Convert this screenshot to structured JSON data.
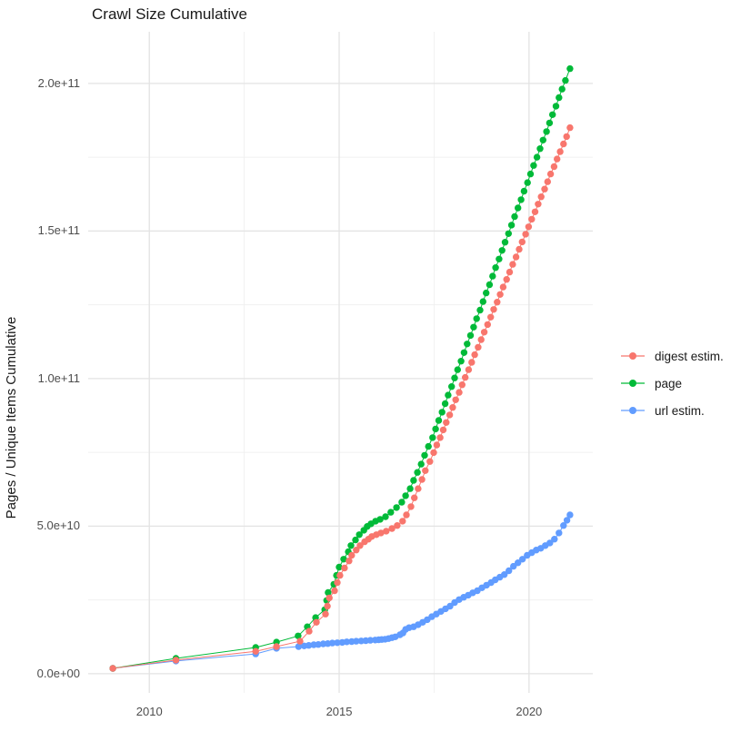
{
  "title": "Crawl Size Cumulative",
  "y_axis_title": "Pages / Unique Items Cumulative",
  "chart_data": {
    "type": "line",
    "title": "Crawl Size Cumulative",
    "xlabel": "",
    "ylabel": "Pages / Unique Items Cumulative",
    "legend_position": "right",
    "grid": "on",
    "values_unit": "1e9 (points stored in billions of pages/items)",
    "xlim": [
      2008.39,
      2021.68
    ],
    "ylim_billions": [
      -6.5,
      217.5
    ],
    "x_ticks": [
      {
        "label": "2010",
        "year": 2010
      },
      {
        "label": "2015",
        "year": 2015
      },
      {
        "label": "2020",
        "year": 2020
      }
    ],
    "x_minor_ticks": [
      2012.5,
      2017.5
    ],
    "y_ticks": [
      {
        "label": "0.0e+00",
        "value": 0
      },
      {
        "label": "5.0e+10",
        "value": 50
      },
      {
        "label": "1.0e+11",
        "value": 100
      },
      {
        "label": "1.5e+11",
        "value": 150
      },
      {
        "label": "2.0e+11",
        "value": 200
      }
    ],
    "y_minor_ticks": [
      25,
      75,
      125,
      175
    ],
    "series": [
      {
        "name": "digest estim.",
        "color": "#F8766D",
        "points": [
          [
            2009.04,
            1.8
          ],
          [
            2010.7,
            4.6
          ],
          [
            2012.8,
            7.6
          ],
          [
            2013.35,
            9.2
          ],
          [
            2013.97,
            11.0
          ],
          [
            2014.21,
            14.4
          ],
          [
            2014.4,
            17.4
          ],
          [
            2014.64,
            20.2
          ],
          [
            2014.69,
            22.9
          ],
          [
            2014.74,
            25.7
          ],
          [
            2014.88,
            28.1
          ],
          [
            2014.95,
            30.9
          ],
          [
            2015.02,
            33.3
          ],
          [
            2015.14,
            35.8
          ],
          [
            2015.26,
            38.2
          ],
          [
            2015.33,
            40.1
          ],
          [
            2015.45,
            41.9
          ],
          [
            2015.55,
            43.4
          ],
          [
            2015.67,
            44.7
          ],
          [
            2015.77,
            45.6
          ],
          [
            2015.86,
            46.5
          ],
          [
            2015.98,
            47.1
          ],
          [
            2016.1,
            47.7
          ],
          [
            2016.24,
            48.3
          ],
          [
            2016.39,
            49.2
          ],
          [
            2016.53,
            50.2
          ],
          [
            2016.67,
            51.7
          ],
          [
            2016.77,
            53.8
          ],
          [
            2016.89,
            56.6
          ],
          [
            2016.98,
            59.6
          ],
          [
            2017.08,
            62.7
          ],
          [
            2017.18,
            65.8
          ],
          [
            2017.27,
            68.8
          ],
          [
            2017.39,
            71.9
          ],
          [
            2017.49,
            74.9
          ],
          [
            2017.57,
            77.5
          ],
          [
            2017.66,
            80.0
          ],
          [
            2017.74,
            82.6
          ],
          [
            2017.82,
            85.1
          ],
          [
            2017.91,
            87.7
          ],
          [
            2017.99,
            90.2
          ],
          [
            2018.07,
            92.8
          ],
          [
            2018.16,
            95.3
          ],
          [
            2018.24,
            97.9
          ],
          [
            2018.32,
            100.4
          ],
          [
            2018.41,
            103.0
          ],
          [
            2018.49,
            105.5
          ],
          [
            2018.57,
            108.1
          ],
          [
            2018.66,
            110.6
          ],
          [
            2018.74,
            113.2
          ],
          [
            2018.82,
            115.7
          ],
          [
            2018.91,
            118.3
          ],
          [
            2018.99,
            120.8
          ],
          [
            2019.07,
            123.4
          ],
          [
            2019.16,
            125.9
          ],
          [
            2019.24,
            128.5
          ],
          [
            2019.32,
            131.0
          ],
          [
            2019.41,
            133.6
          ],
          [
            2019.49,
            136.1
          ],
          [
            2019.57,
            138.7
          ],
          [
            2019.66,
            141.2
          ],
          [
            2019.74,
            143.8
          ],
          [
            2019.82,
            146.3
          ],
          [
            2019.91,
            148.9
          ],
          [
            2019.99,
            151.4
          ],
          [
            2020.07,
            154.0
          ],
          [
            2020.16,
            156.5
          ],
          [
            2020.24,
            159.1
          ],
          [
            2020.32,
            161.6
          ],
          [
            2020.41,
            164.2
          ],
          [
            2020.49,
            166.7
          ],
          [
            2020.57,
            169.3
          ],
          [
            2020.66,
            171.8
          ],
          [
            2020.74,
            174.4
          ],
          [
            2020.82,
            176.9
          ],
          [
            2020.91,
            179.5
          ],
          [
            2020.99,
            182.0
          ],
          [
            2021.08,
            185.0
          ]
        ]
      },
      {
        "name": "page",
        "color": "#00BA38",
        "points": [
          [
            2009.04,
            1.8
          ],
          [
            2010.7,
            5.2
          ],
          [
            2012.8,
            8.9
          ],
          [
            2013.35,
            10.7
          ],
          [
            2013.92,
            12.8
          ],
          [
            2014.16,
            15.9
          ],
          [
            2014.38,
            19.0
          ],
          [
            2014.62,
            21.7
          ],
          [
            2014.67,
            24.8
          ],
          [
            2014.71,
            27.5
          ],
          [
            2014.86,
            30.3
          ],
          [
            2014.93,
            33.3
          ],
          [
            2015.0,
            36.1
          ],
          [
            2015.12,
            38.8
          ],
          [
            2015.24,
            41.3
          ],
          [
            2015.31,
            43.4
          ],
          [
            2015.43,
            45.3
          ],
          [
            2015.53,
            47.1
          ],
          [
            2015.65,
            48.6
          ],
          [
            2015.74,
            49.9
          ],
          [
            2015.84,
            50.8
          ],
          [
            2015.96,
            51.7
          ],
          [
            2016.08,
            52.3
          ],
          [
            2016.22,
            53.2
          ],
          [
            2016.36,
            54.7
          ],
          [
            2016.51,
            56.3
          ],
          [
            2016.65,
            58.1
          ],
          [
            2016.75,
            60.3
          ],
          [
            2016.87,
            62.7
          ],
          [
            2016.96,
            65.5
          ],
          [
            2017.06,
            68.2
          ],
          [
            2017.16,
            71.0
          ],
          [
            2017.25,
            74.0
          ],
          [
            2017.35,
            77.0
          ],
          [
            2017.46,
            80.0
          ],
          [
            2017.54,
            82.9
          ],
          [
            2017.62,
            85.8
          ],
          [
            2017.71,
            88.6
          ],
          [
            2017.79,
            91.5
          ],
          [
            2017.87,
            94.4
          ],
          [
            2017.96,
            97.3
          ],
          [
            2018.04,
            100.2
          ],
          [
            2018.12,
            103.0
          ],
          [
            2018.21,
            105.9
          ],
          [
            2018.29,
            108.8
          ],
          [
            2018.37,
            111.7
          ],
          [
            2018.46,
            114.6
          ],
          [
            2018.54,
            117.4
          ],
          [
            2018.62,
            120.3
          ],
          [
            2018.71,
            123.2
          ],
          [
            2018.79,
            126.1
          ],
          [
            2018.87,
            129.0
          ],
          [
            2018.96,
            131.8
          ],
          [
            2019.04,
            134.7
          ],
          [
            2019.12,
            137.6
          ],
          [
            2019.21,
            140.5
          ],
          [
            2019.29,
            143.4
          ],
          [
            2019.37,
            146.2
          ],
          [
            2019.46,
            149.1
          ],
          [
            2019.54,
            152.0
          ],
          [
            2019.62,
            154.9
          ],
          [
            2019.71,
            157.8
          ],
          [
            2019.79,
            160.6
          ],
          [
            2019.87,
            163.5
          ],
          [
            2019.96,
            166.4
          ],
          [
            2020.04,
            169.3
          ],
          [
            2020.12,
            172.2
          ],
          [
            2020.21,
            175.0
          ],
          [
            2020.29,
            177.9
          ],
          [
            2020.37,
            180.8
          ],
          [
            2020.46,
            183.7
          ],
          [
            2020.54,
            186.6
          ],
          [
            2020.62,
            189.4
          ],
          [
            2020.71,
            192.3
          ],
          [
            2020.79,
            195.2
          ],
          [
            2020.87,
            198.1
          ],
          [
            2020.96,
            201.0
          ],
          [
            2021.08,
            205.0
          ]
        ]
      },
      {
        "name": "url estim.",
        "color": "#619CFF",
        "points": [
          [
            2009.04,
            1.8
          ],
          [
            2010.7,
            4.3
          ],
          [
            2012.8,
            6.7
          ],
          [
            2013.35,
            8.6
          ],
          [
            2013.93,
            9.2
          ],
          [
            2014.08,
            9.4
          ],
          [
            2014.2,
            9.6
          ],
          [
            2014.33,
            9.8
          ],
          [
            2014.45,
            9.9
          ],
          [
            2014.58,
            10.1
          ],
          [
            2014.7,
            10.2
          ],
          [
            2014.82,
            10.4
          ],
          [
            2014.95,
            10.5
          ],
          [
            2015.08,
            10.6
          ],
          [
            2015.2,
            10.8
          ],
          [
            2015.33,
            10.9
          ],
          [
            2015.45,
            11.0
          ],
          [
            2015.58,
            11.1
          ],
          [
            2015.7,
            11.2
          ],
          [
            2015.82,
            11.3
          ],
          [
            2015.95,
            11.4
          ],
          [
            2016.04,
            11.5
          ],
          [
            2016.12,
            11.6
          ],
          [
            2016.21,
            11.7
          ],
          [
            2016.3,
            11.9
          ],
          [
            2016.39,
            12.2
          ],
          [
            2016.48,
            12.5
          ],
          [
            2016.6,
            13.2
          ],
          [
            2016.68,
            13.8
          ],
          [
            2016.75,
            15.0
          ],
          [
            2016.84,
            15.6
          ],
          [
            2016.96,
            15.9
          ],
          [
            2017.08,
            16.6
          ],
          [
            2017.2,
            17.4
          ],
          [
            2017.32,
            18.3
          ],
          [
            2017.44,
            19.3
          ],
          [
            2017.56,
            20.2
          ],
          [
            2017.68,
            21.1
          ],
          [
            2017.8,
            22.0
          ],
          [
            2017.92,
            22.9
          ],
          [
            2018.04,
            24.1
          ],
          [
            2018.16,
            25.1
          ],
          [
            2018.28,
            25.9
          ],
          [
            2018.4,
            26.6
          ],
          [
            2018.52,
            27.4
          ],
          [
            2018.64,
            28.1
          ],
          [
            2018.76,
            29.1
          ],
          [
            2018.88,
            30.0
          ],
          [
            2019.0,
            30.9
          ],
          [
            2019.11,
            31.8
          ],
          [
            2019.23,
            32.7
          ],
          [
            2019.35,
            33.6
          ],
          [
            2019.47,
            34.9
          ],
          [
            2019.59,
            36.4
          ],
          [
            2019.71,
            37.6
          ],
          [
            2019.83,
            38.8
          ],
          [
            2019.95,
            40.1
          ],
          [
            2020.07,
            41.0
          ],
          [
            2020.19,
            41.9
          ],
          [
            2020.31,
            42.5
          ],
          [
            2020.43,
            43.4
          ],
          [
            2020.55,
            44.3
          ],
          [
            2020.67,
            45.6
          ],
          [
            2020.79,
            47.7
          ],
          [
            2020.91,
            50.2
          ],
          [
            2021.0,
            52.0
          ],
          [
            2021.08,
            53.8
          ]
        ]
      }
    ],
    "draw_order": [
      "url estim.",
      "page",
      "digest estim."
    ],
    "colors": {
      "major_grid": "#e3e3e3",
      "minor_grid": "#f0f0f0",
      "tick_text": "#4d4d4d",
      "title_text": "#1a1a1a"
    }
  },
  "legend": {
    "items": [
      {
        "label": "digest estim.",
        "color": "#F8766D"
      },
      {
        "label": "page",
        "color": "#00BA38"
      },
      {
        "label": "url estim.",
        "color": "#619CFF"
      }
    ]
  }
}
